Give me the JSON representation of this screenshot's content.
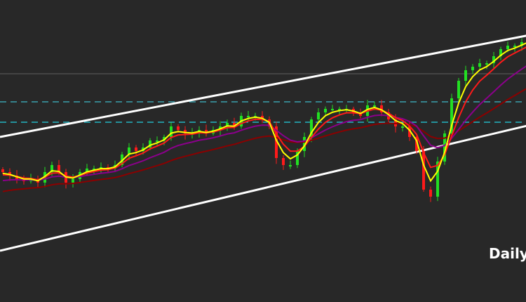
{
  "chart_data": {
    "type": "candlestick",
    "title": "",
    "timeframe_label": "Daily",
    "grid": false,
    "axes_visible": false,
    "closes": [
      1275,
      1250,
      1225,
      1210,
      1225,
      1200,
      1275,
      1325,
      1275,
      1200,
      1225,
      1275,
      1300,
      1300,
      1310,
      1300,
      1325,
      1400,
      1450,
      1425,
      1450,
      1500,
      1500,
      1525,
      1600,
      1575,
      1550,
      1550,
      1575,
      1550,
      1575,
      1600,
      1625,
      1600,
      1675,
      1675,
      1675,
      1650,
      1600,
      1375,
      1325,
      1325,
      1425,
      1525,
      1650,
      1700,
      1725,
      1725,
      1725,
      1725,
      1700,
      1675,
      1750,
      1750,
      1700,
      1650,
      1600,
      1600,
      1525,
      1425,
      1150,
      1100,
      1350,
      1550,
      1800,
      1925,
      2000,
      2025,
      2050,
      2050,
      2100,
      2150,
      2175,
      2175,
      2200,
      2225
    ],
    "moving_averages": [
      {
        "period": 3,
        "color": "#ffff00"
      },
      {
        "period": 5,
        "color": "#ff1a1a"
      },
      {
        "period": 12,
        "color": "#8b008b"
      },
      {
        "period": 25,
        "color": "#8b0000"
      }
    ],
    "trendlines": [
      {
        "from": [
          0,
          1525
        ],
        "to": [
          75,
          2250
        ],
        "color": "#ffffff"
      },
      {
        "from": [
          0,
          715
        ],
        "to": [
          75,
          1610
        ],
        "color": "#ffffff"
      }
    ],
    "horizontal_levels": [
      {
        "value": 1975,
        "color": "#555555",
        "style": "solid"
      },
      {
        "value": 1775,
        "color": "#3fb8c8",
        "style": "dashed"
      },
      {
        "value": 1630,
        "color": "#22d0e0",
        "style": "dashed"
      }
    ],
    "colors": {
      "background": "#282828",
      "up": "#22e022",
      "down": "#ff1a1a"
    }
  }
}
